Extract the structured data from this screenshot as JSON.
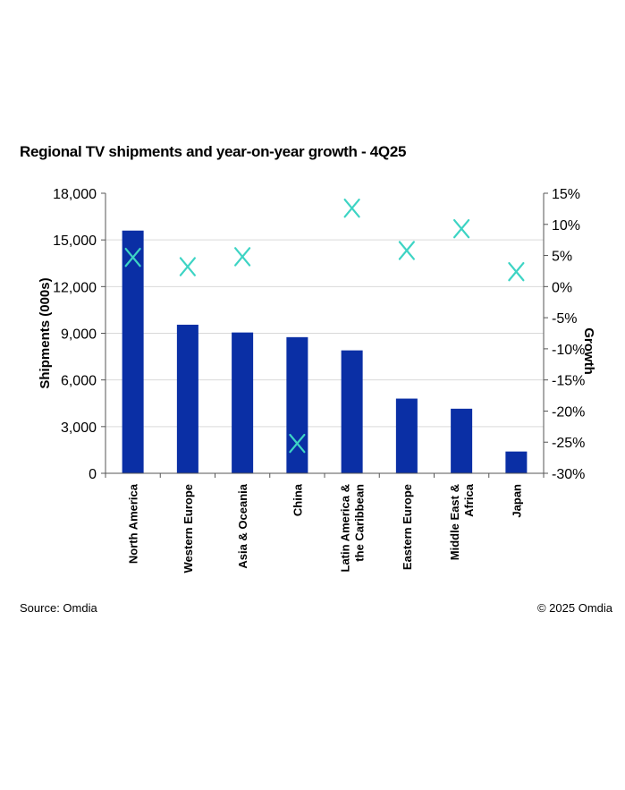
{
  "chart_data": {
    "type": "bar",
    "title": "Regional TV shipments and year-on-year growth - 4Q25",
    "categories": [
      [
        "North America"
      ],
      [
        "Western Europe"
      ],
      [
        "Asia & Oceania"
      ],
      [
        "China"
      ],
      [
        "Latin America &",
        "the Caribbean"
      ],
      [
        "Eastern Europe"
      ],
      [
        "Middle East &",
        "Africa"
      ],
      [
        "Japan"
      ]
    ],
    "series": [
      {
        "name": "Shipments (000s)",
        "type": "bar",
        "axis": "left",
        "color": "#0a2fa5",
        "values": [
          15600,
          9550,
          9050,
          8750,
          7900,
          4800,
          4150,
          1400
        ]
      },
      {
        "name": "Growth",
        "type": "scatter",
        "axis": "right",
        "marker": "x",
        "color": "#3dd4c4",
        "values": [
          4.7,
          3.2,
          4.8,
          -25.2,
          12.6,
          5.8,
          9.3,
          2.4
        ]
      }
    ],
    "ylabel": "Shipments (000s)",
    "ylim": [
      0,
      18000
    ],
    "yticks": [
      "18,000",
      "15,000",
      "12,000",
      "9,000",
      "6,000",
      "3,000",
      "0"
    ],
    "y2label": "Growth",
    "y2lim": [
      -30,
      15
    ],
    "y2ticks": [
      "15%",
      "10%",
      "5%",
      "0%",
      "-5%",
      "-10%",
      "-15%",
      "-20%",
      "-25%",
      "-30%"
    ],
    "grid": true
  },
  "footer": {
    "source": "Source: Omdia",
    "copyright": "© 2025 Omdia"
  }
}
